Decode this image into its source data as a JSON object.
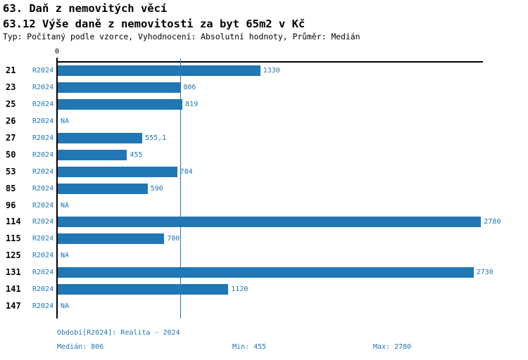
{
  "header": {
    "title_line1": "63. Daň z nemovitých věcí",
    "title_line2": "63.12 Výše daně z nemovitosti za byt 65m2 v Kč",
    "subtitle": "Typ: Počítaný podle vzorce, Vyhodnocení: Absolutní hodnoty, Průměr: Medián"
  },
  "chart_data": {
    "type": "bar",
    "orientation": "horizontal",
    "title": "63.12 Výše daně z nemovitosti za byt 65m2 v Kč",
    "axis": {
      "zero_label": "0",
      "min": 0,
      "max": 2797,
      "median_reference": 806,
      "grid": "off",
      "median_line_color": "#2077b4"
    },
    "categories": [
      "21",
      "23",
      "25",
      "26",
      "27",
      "50",
      "53",
      "85",
      "96",
      "114",
      "115",
      "125",
      "131",
      "141",
      "147"
    ],
    "series": [
      {
        "name": "R2024",
        "values": [
          1330,
          806,
          819,
          null,
          555.1,
          455,
          784,
          590,
          null,
          2780,
          700,
          null,
          2730,
          1120,
          null
        ]
      }
    ],
    "rows": [
      {
        "category": "21",
        "period": "R2024",
        "value": 1330,
        "label": "1330"
      },
      {
        "category": "23",
        "period": "R2024",
        "value": 806,
        "label": "806"
      },
      {
        "category": "25",
        "period": "R2024",
        "value": 819,
        "label": "819"
      },
      {
        "category": "26",
        "period": "R2024",
        "value": null,
        "label": "NA"
      },
      {
        "category": "27",
        "period": "R2024",
        "value": 555.1,
        "label": "555,1"
      },
      {
        "category": "50",
        "period": "R2024",
        "value": 455,
        "label": "455"
      },
      {
        "category": "53",
        "period": "R2024",
        "value": 784,
        "label": "784"
      },
      {
        "category": "85",
        "period": "R2024",
        "value": 590,
        "label": "590"
      },
      {
        "category": "96",
        "period": "R2024",
        "value": null,
        "label": "NA"
      },
      {
        "category": "114",
        "period": "R2024",
        "value": 2780,
        "label": "2780"
      },
      {
        "category": "115",
        "period": "R2024",
        "value": 700,
        "label": "700"
      },
      {
        "category": "125",
        "period": "R2024",
        "value": null,
        "label": "NA"
      },
      {
        "category": "131",
        "period": "R2024",
        "value": 2730,
        "label": "2730"
      },
      {
        "category": "141",
        "period": "R2024",
        "value": 1120,
        "label": "1120"
      },
      {
        "category": "147",
        "period": "R2024",
        "value": null,
        "label": "NA"
      }
    ],
    "colors": {
      "bar": "#2077b4",
      "axis": "#000000",
      "text_blue": "#2077b4",
      "category_text": "#000000"
    }
  },
  "footer": {
    "period_line": "Období[R2024]: Realita - 2024",
    "median": "Medián: 806",
    "min": "Min: 455",
    "max": "Max: 2780"
  }
}
